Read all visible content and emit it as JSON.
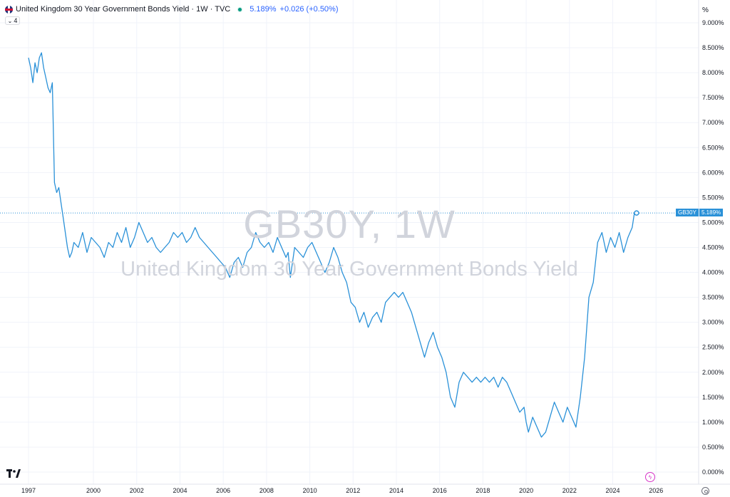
{
  "header": {
    "title": "United Kingdom 30 Year Government Bonds Yield · 1W · TVC",
    "price": "5.189%",
    "change": "+0.026 (+0.50%)",
    "collapse_count": "4",
    "unit": "%"
  },
  "watermark": {
    "symbol": "GB30Y, 1W",
    "name": "United Kingdom 30 Year Government Bonds Yield"
  },
  "price_tag": {
    "symbol": "GB30Y",
    "value": "5.189%"
  },
  "colors": {
    "line": "#2a91d8",
    "grid": "#f0f3fa",
    "axis_text": "#131722",
    "flash": "#d633c7"
  },
  "icons": [
    "uk-flag-icon",
    "market-open-icon",
    "chevron-down-icon",
    "tradingview-logo-icon",
    "flash-icon",
    "settings-icon"
  ],
  "chart_data": {
    "type": "line",
    "xlabel": "",
    "ylabel": "",
    "x_ticks": [
      1997,
      2000,
      2002,
      2004,
      2006,
      2008,
      2010,
      2012,
      2014,
      2016,
      2018,
      2020,
      2022,
      2024,
      2026
    ],
    "y_ticks": [
      0,
      0.5,
      1,
      1.5,
      2,
      2.5,
      3,
      3.5,
      4,
      4.5,
      5,
      5.5,
      6,
      6.5,
      7,
      7.5,
      8,
      8.5,
      9
    ],
    "y_tick_labels": [
      "0.000%",
      "0.500%",
      "1.000%",
      "1.500%",
      "2.000%",
      "2.500%",
      "3.000%",
      "3.500%",
      "4.000%",
      "4.500%",
      "5.000%",
      "5.500%",
      "6.000%",
      "6.500%",
      "7.000%",
      "7.500%",
      "8.000%",
      "8.500%",
      "9.000%"
    ],
    "ylim": [
      0,
      9
    ],
    "xlim": [
      1997.0,
      2026.75
    ],
    "grid": true,
    "series": [
      {
        "x": [
          1997.0,
          1997.1,
          1997.2,
          1997.3,
          1997.4,
          1997.5,
          1997.6,
          1997.7,
          1997.8,
          1997.9,
          1998.0,
          1998.1,
          1998.2,
          1998.3,
          1998.4,
          1998.5,
          1998.6,
          1998.7,
          1998.8,
          1998.9,
          1999.0,
          1999.1,
          1999.3,
          1999.5,
          1999.7,
          1999.9,
          2000.1,
          2000.3,
          2000.5,
          2000.7,
          2000.9,
          2001.1,
          2001.3,
          2001.5,
          2001.7,
          2001.9,
          2002.1,
          2002.3,
          2002.5,
          2002.7,
          2002.9,
          2003.1,
          2003.3,
          2003.5,
          2003.7,
          2003.9,
          2004.1,
          2004.3,
          2004.5,
          2004.7,
          2004.9,
          2005.1,
          2005.3,
          2005.5,
          2005.7,
          2005.9,
          2006.1,
          2006.3,
          2006.5,
          2006.7,
          2006.9,
          2007.1,
          2007.3,
          2007.5,
          2007.7,
          2007.9,
          2008.1,
          2008.3,
          2008.5,
          2008.7,
          2008.9,
          2009.0,
          2009.1,
          2009.3,
          2009.5,
          2009.7,
          2009.9,
          2010.1,
          2010.3,
          2010.5,
          2010.7,
          2010.9,
          2011.1,
          2011.3,
          2011.5,
          2011.7,
          2011.9,
          2012.1,
          2012.3,
          2012.5,
          2012.7,
          2012.9,
          2013.1,
          2013.3,
          2013.5,
          2013.7,
          2013.9,
          2014.1,
          2014.3,
          2014.5,
          2014.7,
          2014.9,
          2015.1,
          2015.3,
          2015.5,
          2015.7,
          2015.9,
          2016.1,
          2016.3,
          2016.5,
          2016.7,
          2016.9,
          2017.1,
          2017.3,
          2017.5,
          2017.7,
          2017.9,
          2018.1,
          2018.3,
          2018.5,
          2018.7,
          2018.9,
          2019.1,
          2019.3,
          2019.5,
          2019.7,
          2019.9,
          2020.0,
          2020.1,
          2020.3,
          2020.5,
          2020.7,
          2020.9,
          2021.1,
          2021.3,
          2021.5,
          2021.7,
          2021.9,
          2022.1,
          2022.3,
          2022.5,
          2022.7,
          2022.9,
          2023.1,
          2023.3,
          2023.5,
          2023.7,
          2023.9,
          2024.1,
          2024.3,
          2024.5,
          2024.7,
          2024.9,
          2025.0,
          2025.1
        ],
        "y": [
          8.3,
          8.1,
          7.8,
          8.2,
          8.0,
          8.3,
          8.4,
          8.1,
          7.9,
          7.7,
          7.6,
          7.8,
          5.8,
          5.6,
          5.7,
          5.4,
          5.1,
          4.8,
          4.5,
          4.3,
          4.4,
          4.6,
          4.5,
          4.8,
          4.4,
          4.7,
          4.6,
          4.5,
          4.3,
          4.6,
          4.5,
          4.8,
          4.6,
          4.9,
          4.5,
          4.7,
          5.0,
          4.8,
          4.6,
          4.7,
          4.5,
          4.4,
          4.5,
          4.6,
          4.8,
          4.7,
          4.8,
          4.6,
          4.7,
          4.9,
          4.7,
          4.6,
          4.5,
          4.4,
          4.3,
          4.2,
          4.1,
          3.9,
          4.2,
          4.3,
          4.1,
          4.4,
          4.5,
          4.8,
          4.6,
          4.5,
          4.6,
          4.4,
          4.7,
          4.5,
          4.3,
          4.4,
          3.9,
          4.5,
          4.4,
          4.3,
          4.5,
          4.6,
          4.4,
          4.2,
          4.0,
          4.2,
          4.5,
          4.3,
          4.0,
          3.8,
          3.4,
          3.3,
          3.0,
          3.2,
          2.9,
          3.1,
          3.2,
          3.0,
          3.4,
          3.5,
          3.6,
          3.5,
          3.6,
          3.4,
          3.2,
          2.9,
          2.6,
          2.3,
          2.6,
          2.8,
          2.5,
          2.3,
          2.0,
          1.5,
          1.3,
          1.8,
          2.0,
          1.9,
          1.8,
          1.9,
          1.8,
          1.9,
          1.8,
          1.9,
          1.7,
          1.9,
          1.8,
          1.6,
          1.4,
          1.2,
          1.3,
          1.0,
          0.8,
          1.1,
          0.9,
          0.7,
          0.8,
          1.1,
          1.4,
          1.2,
          1.0,
          1.3,
          1.1,
          0.9,
          1.5,
          2.3,
          3.5,
          3.8,
          4.6,
          4.8,
          4.4,
          4.7,
          4.5,
          4.8,
          4.4,
          4.7,
          4.9,
          5.19,
          5.19
        ]
      }
    ]
  }
}
